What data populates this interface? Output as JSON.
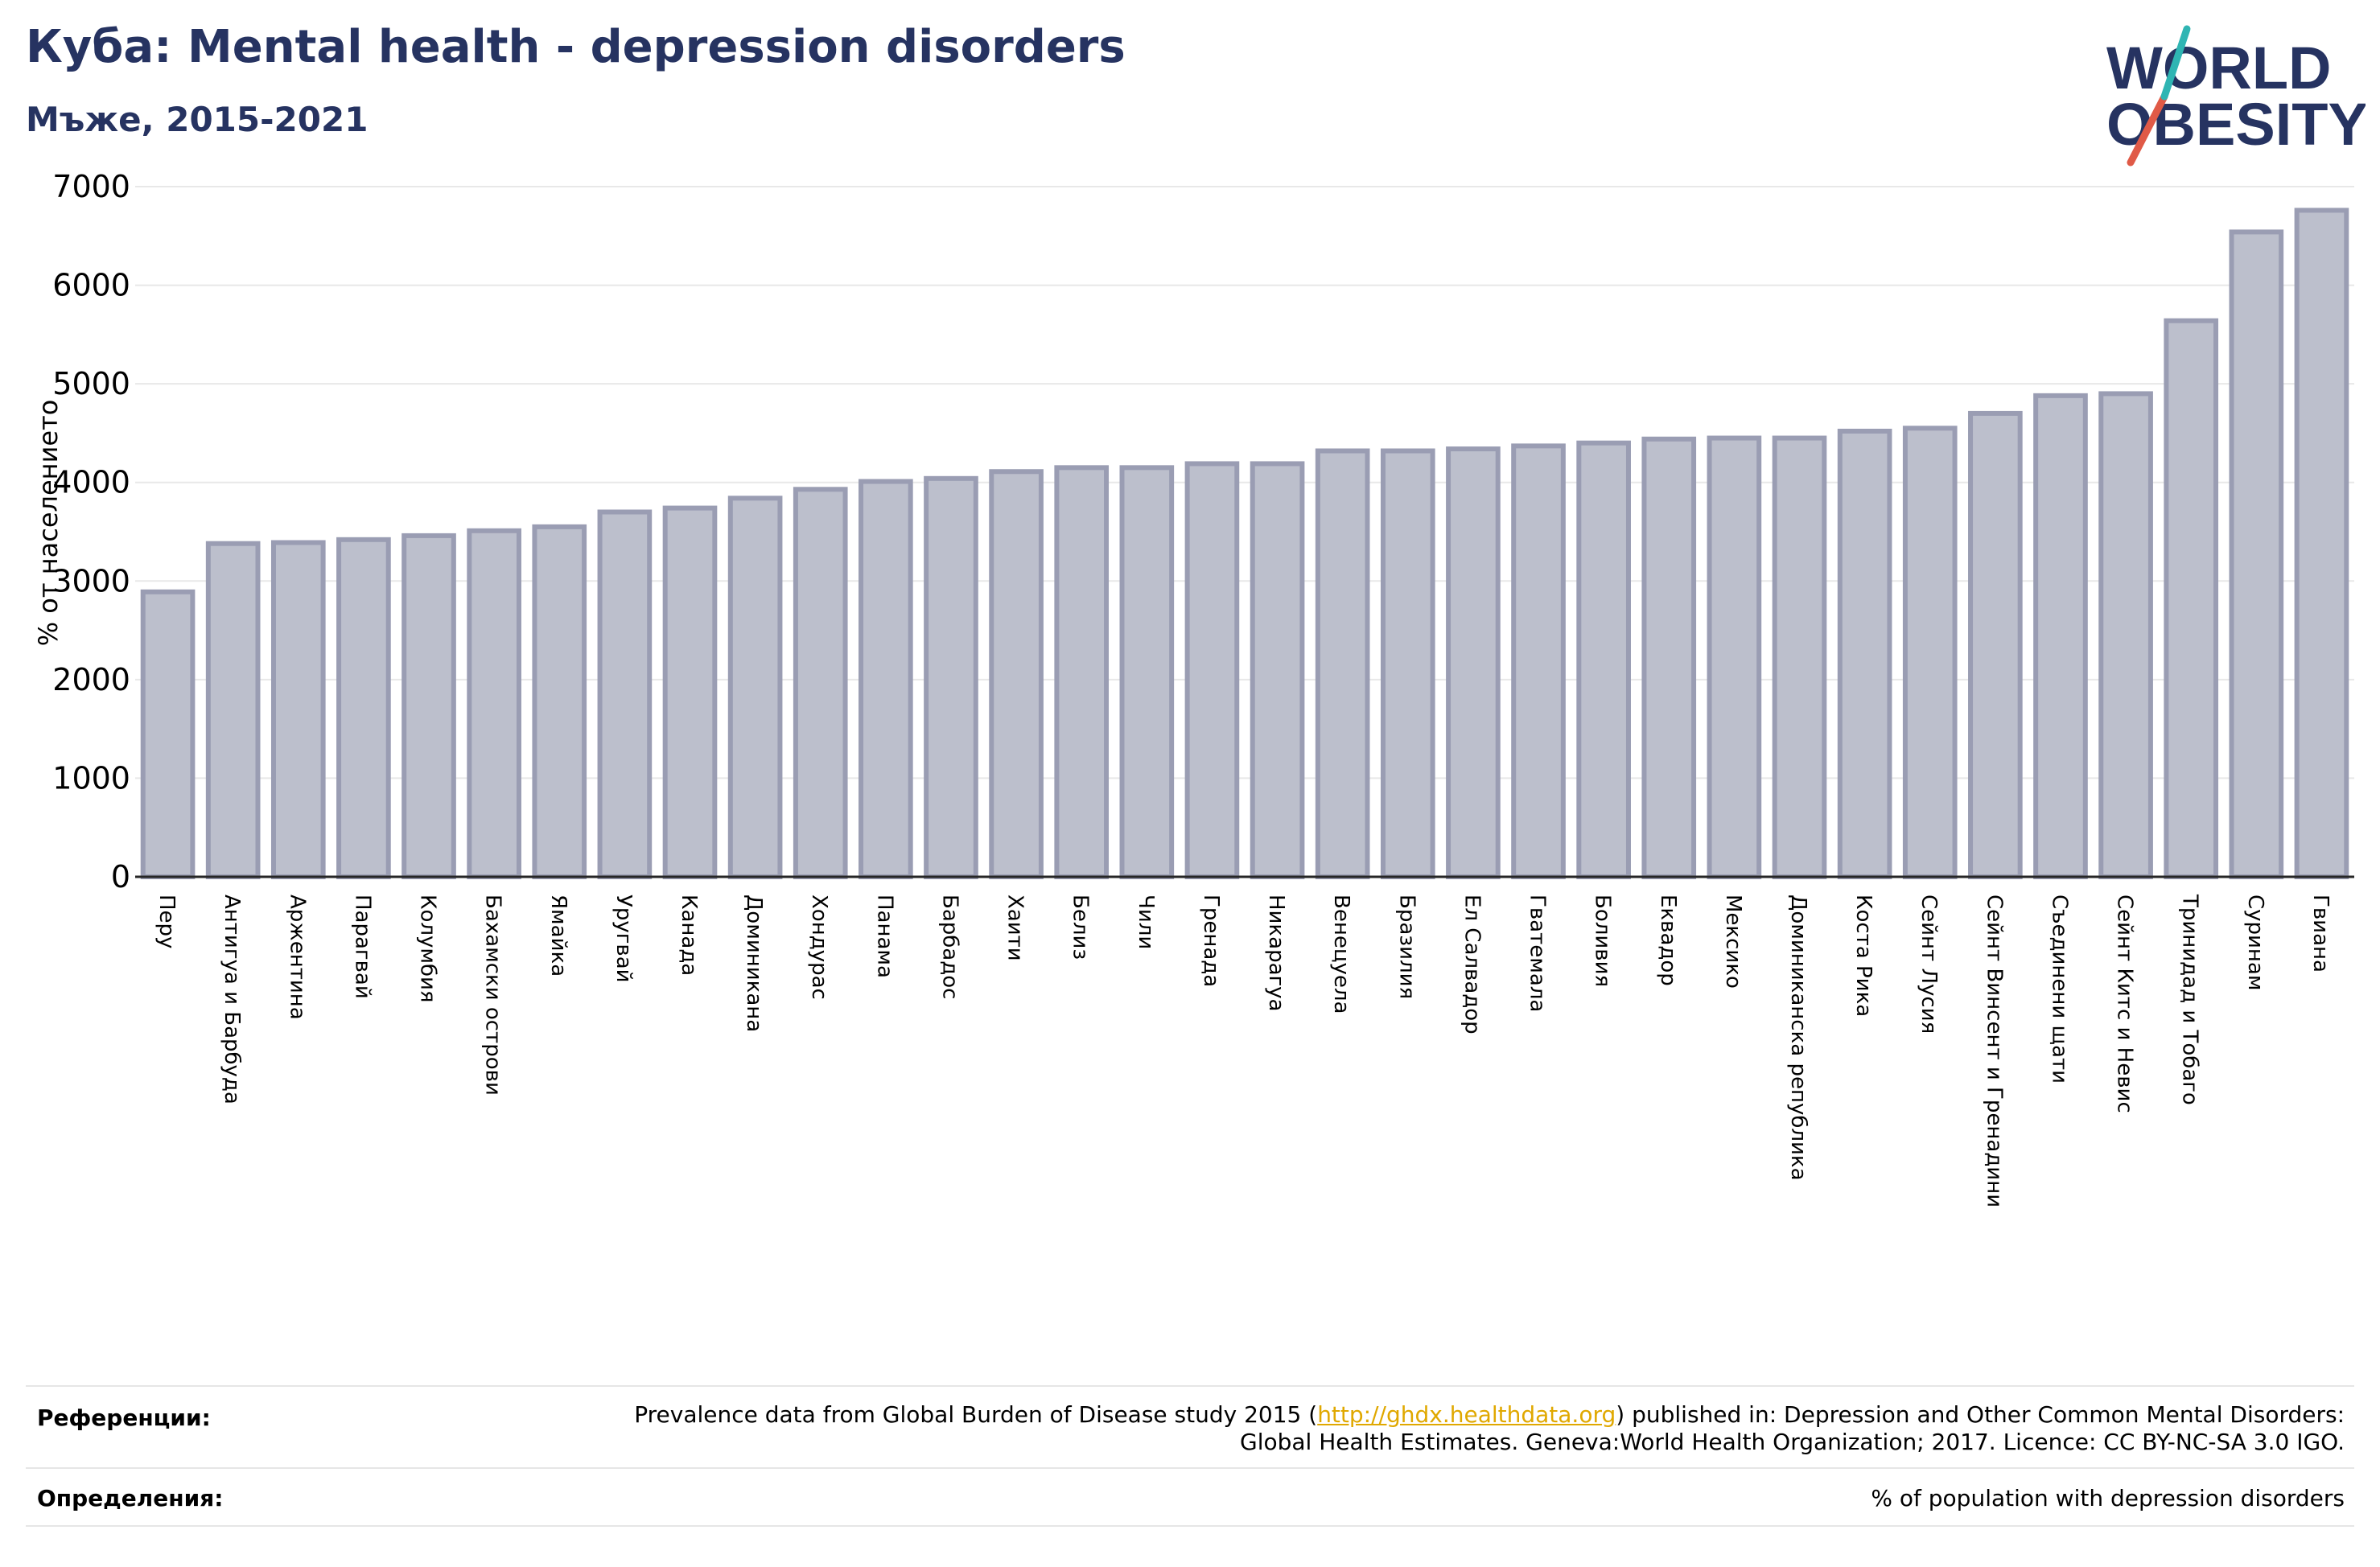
{
  "header": {
    "title": "Куба: Mental health - depression disorders",
    "subtitle": "Мъже, 2015-2021"
  },
  "logo": {
    "line1": "WORLD",
    "line2": "OBESITY",
    "colors": {
      "text": "#263361",
      "slash_red": "#e05a47",
      "slash_teal": "#2fb5b3"
    }
  },
  "chart_data": {
    "type": "bar",
    "ylabel": "% от населението",
    "ylim": [
      0,
      7000
    ],
    "yticks": [
      0,
      1000,
      2000,
      3000,
      4000,
      5000,
      6000,
      7000
    ],
    "grid": true,
    "bar_fill": "#bcbfcc",
    "bar_stroke": "#9a9db3",
    "categories": [
      "Перу",
      "Антигуа и Барбуда",
      "Аржентина",
      "Парагвай",
      "Колумбия",
      "Бахамски острови",
      "Ямайка",
      "Уругвай",
      "Канада",
      "Доминикана",
      "Хондурас",
      "Панама",
      "Барбадос",
      "Хаити",
      "Белиз",
      "Чили",
      "Гренада",
      "Никарагуа",
      "Венецуела",
      "Бразилия",
      "Ел Салвадор",
      "Гватемала",
      "Боливия",
      "Еквадор",
      "Мексико",
      "Доминиканска република",
      "Коста Рика",
      "Сейнт Лусия",
      "Сейнт Винсент и Гренадини",
      "Съединени щати",
      "Сейнт Китс и Невис",
      "Тринидад и Тобаго",
      "Суринам",
      "Гвиана"
    ],
    "values": [
      2890,
      3380,
      3390,
      3420,
      3460,
      3510,
      3550,
      3700,
      3740,
      3840,
      3930,
      4010,
      4040,
      4110,
      4150,
      4150,
      4190,
      4190,
      4320,
      4320,
      4340,
      4370,
      4400,
      4440,
      4450,
      4450,
      4520,
      4550,
      4700,
      4880,
      4900,
      5640,
      6540,
      6760
    ]
  },
  "footer": {
    "references_label": "Референции:",
    "references_text_before": "Prevalence data from Global Burden of Disease study 2015 (",
    "references_link": "http://ghdx.healthdata.org",
    "references_text_after": ") published in: Depression and Other Common Mental Disorders: Global Health Estimates. Geneva:World Health Organization; 2017. Licence: CC BY-NC-SA 3.0 IGO.",
    "definitions_label": "Определения:",
    "definitions_text": "% of population with depression disorders"
  }
}
